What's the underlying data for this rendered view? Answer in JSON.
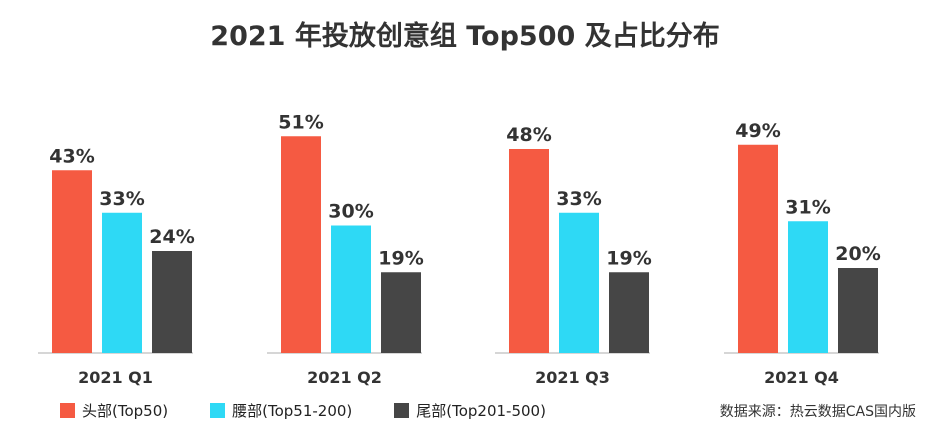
{
  "colors": {
    "head": "#F55A42",
    "waist": "#2ED9F5",
    "tail": "#464646",
    "baseline": "#c8c8c8",
    "text": "#333333"
  },
  "chart_data": {
    "type": "bar",
    "title": "2021 年投放创意组 Top500 及占比分布",
    "categories": [
      "2021 Q1",
      "2021 Q2",
      "2021 Q3",
      "2021 Q4"
    ],
    "series": [
      {
        "name": "头部(Top50)",
        "values": [
          43,
          51,
          48,
          49
        ]
      },
      {
        "name": "腰部(Top51-200)",
        "values": [
          33,
          30,
          33,
          31
        ]
      },
      {
        "name": "尾部(Top201-500)",
        "values": [
          24,
          19,
          19,
          20
        ]
      }
    ],
    "value_suffix": "%",
    "legend_position": "bottom-left",
    "source": "数据来源：热云数据CAS国内版"
  }
}
